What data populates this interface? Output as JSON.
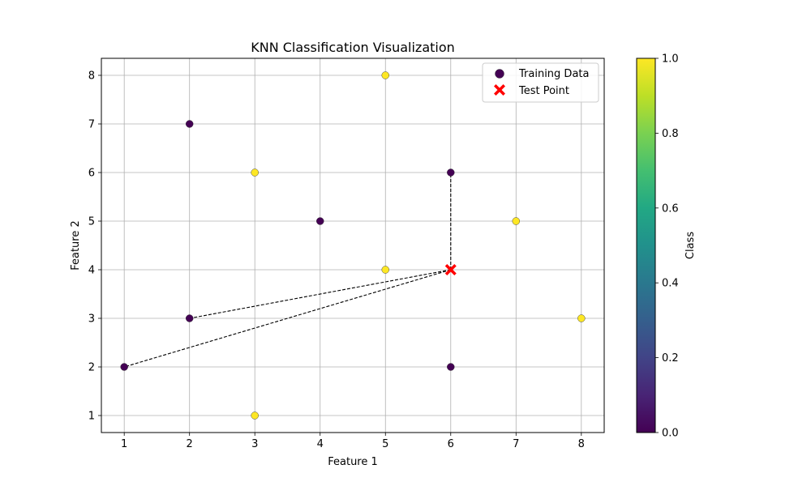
{
  "chart_data": {
    "type": "scatter",
    "title": "KNN Classification Visualization",
    "xlabel": "Feature 1",
    "ylabel": "Feature 2",
    "xlim": [
      0.65,
      8.35
    ],
    "ylim": [
      0.65,
      8.35
    ],
    "xticks": [
      1,
      2,
      3,
      4,
      5,
      6,
      7,
      8
    ],
    "yticks": [
      1,
      2,
      3,
      4,
      5,
      6,
      7,
      8
    ],
    "grid": true,
    "legend_position": "top-right",
    "series": [
      {
        "name": "Training Data",
        "marker": "circle",
        "points": [
          {
            "x": 1,
            "y": 2,
            "class": 0
          },
          {
            "x": 2,
            "y": 3,
            "class": 0
          },
          {
            "x": 2,
            "y": 7,
            "class": 0
          },
          {
            "x": 3,
            "y": 1,
            "class": 1
          },
          {
            "x": 3,
            "y": 6,
            "class": 1
          },
          {
            "x": 4,
            "y": 5,
            "class": 0
          },
          {
            "x": 5,
            "y": 4,
            "class": 1
          },
          {
            "x": 5,
            "y": 8,
            "class": 1
          },
          {
            "x": 6,
            "y": 2,
            "class": 0
          },
          {
            "x": 6,
            "y": 6,
            "class": 0
          },
          {
            "x": 7,
            "y": 5,
            "class": 1
          },
          {
            "x": 8,
            "y": 3,
            "class": 1
          }
        ]
      },
      {
        "name": "Test Point",
        "marker": "x",
        "color": "#ff0000",
        "points": [
          {
            "x": 6,
            "y": 4
          }
        ]
      }
    ],
    "neighbor_lines": [
      {
        "from": [
          6,
          4
        ],
        "to": [
          6,
          6
        ]
      },
      {
        "from": [
          6,
          4
        ],
        "to": [
          2,
          3
        ]
      },
      {
        "from": [
          6,
          4
        ],
        "to": [
          1,
          2
        ]
      }
    ],
    "colorbar": {
      "label": "Class",
      "range": [
        0.0,
        1.0
      ],
      "ticks": [
        "0.0",
        "0.2",
        "0.4",
        "0.6",
        "0.8",
        "1.0"
      ],
      "colormap": "viridis",
      "class_colors": {
        "0": "#440154",
        "1": "#fde725"
      }
    }
  }
}
